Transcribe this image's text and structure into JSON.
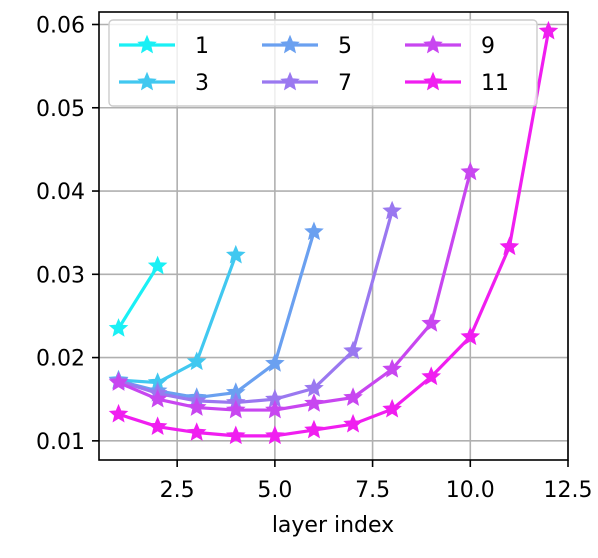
{
  "chart_data": {
    "type": "line",
    "title": "",
    "xlabel": "layer index",
    "ylabel": "",
    "xlim": [
      0.5,
      12.5
    ],
    "ylim": [
      0.0077,
      0.0615
    ],
    "grid": true,
    "legend_placement": "top",
    "legend_columns": 3,
    "marker": "star",
    "x_ticks": [
      {
        "value": 2.5,
        "label": "2.5"
      },
      {
        "value": 5.0,
        "label": "5.0"
      },
      {
        "value": 7.5,
        "label": "7.5"
      },
      {
        "value": 10.0,
        "label": "10.0"
      },
      {
        "value": 12.5,
        "label": "12.5"
      }
    ],
    "y_ticks": [
      {
        "value": 0.01,
        "label": "0.01"
      },
      {
        "value": 0.02,
        "label": "0.02"
      },
      {
        "value": 0.03,
        "label": "0.03"
      },
      {
        "value": 0.04,
        "label": "0.04"
      },
      {
        "value": 0.05,
        "label": "0.05"
      },
      {
        "value": 0.06,
        "label": "0.06"
      }
    ],
    "series": [
      {
        "name": "1",
        "color": "#1af0f5",
        "x": [
          1,
          2
        ],
        "y": [
          0.0235,
          0.031
        ]
      },
      {
        "name": "3",
        "color": "#41c8f0",
        "x": [
          1,
          2,
          3,
          4
        ],
        "y": [
          0.0173,
          0.017,
          0.0195,
          0.0323
        ]
      },
      {
        "name": "5",
        "color": "#6aa0f0",
        "x": [
          1,
          2,
          3,
          4,
          5,
          6
        ],
        "y": [
          0.0172,
          0.016,
          0.0152,
          0.0158,
          0.0193,
          0.0351
        ]
      },
      {
        "name": "7",
        "color": "#9a78f0",
        "x": [
          1,
          2,
          3,
          4,
          5,
          6,
          7,
          8
        ],
        "y": [
          0.0172,
          0.0157,
          0.0148,
          0.0146,
          0.015,
          0.0163,
          0.0208,
          0.0376
        ]
      },
      {
        "name": "9",
        "color": "#c846f0",
        "x": [
          1,
          2,
          3,
          4,
          5,
          6,
          7,
          8,
          9,
          10
        ],
        "y": [
          0.017,
          0.015,
          0.014,
          0.0137,
          0.0137,
          0.0145,
          0.0152,
          0.0186,
          0.0241,
          0.0423
        ]
      },
      {
        "name": "11",
        "color": "#f01ef0",
        "x": [
          1,
          2,
          3,
          4,
          5,
          6,
          7,
          8,
          9,
          10,
          11,
          12
        ],
        "y": [
          0.0132,
          0.0117,
          0.011,
          0.0106,
          0.0106,
          0.0113,
          0.012,
          0.0138,
          0.0177,
          0.0225,
          0.0333,
          0.0592
        ]
      }
    ]
  }
}
